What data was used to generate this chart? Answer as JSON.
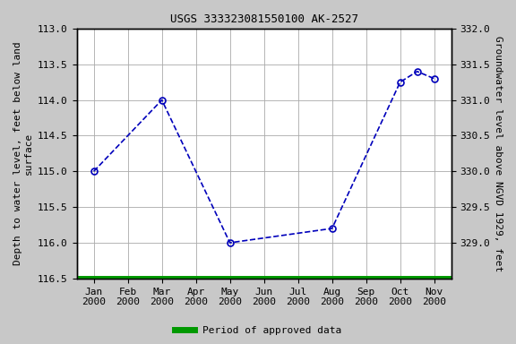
{
  "title": "USGS 333323081550100 AK-2527",
  "ylabel_left": "Depth to water level, feet below land\nsurface",
  "ylabel_right": "Groundwater level above NGVD 1929, feet",
  "xlabel_months": [
    "Jan\n2000",
    "Feb\n2000",
    "Mar\n2000",
    "Apr\n2000",
    "May\n2000",
    "Jun\n2000",
    "Jul\n2000",
    "Aug\n2000",
    "Sep\n2000",
    "Oct\n2000",
    "Nov\n2000"
  ],
  "x_positions": [
    0,
    1,
    2,
    3,
    4,
    5,
    6,
    7,
    8,
    9,
    10
  ],
  "data_x": [
    0,
    2,
    4,
    7,
    9,
    9.5,
    10
  ],
  "data_y": [
    115.0,
    114.0,
    116.0,
    115.8,
    113.75,
    113.6,
    113.7
  ],
  "ylim_left": [
    116.5,
    113.0
  ],
  "ylim_right": [
    328.5,
    332.0
  ],
  "yticks_left": [
    113.0,
    113.5,
    114.0,
    114.5,
    115.0,
    115.5,
    116.0,
    116.5
  ],
  "yticks_right": [
    329.0,
    329.5,
    330.0,
    330.5,
    331.0,
    331.5,
    332.0
  ],
  "line_color": "#0000bb",
  "marker_color": "#0000bb",
  "line_style": "--",
  "legend_color": "#009900",
  "legend_label": "Period of approved data",
  "fig_bg_color": "#c8c8c8",
  "plot_bg_color": "#ffffff",
  "grid_color": "#aaaaaa",
  "title_fontsize": 9,
  "label_fontsize": 8,
  "tick_fontsize": 8
}
